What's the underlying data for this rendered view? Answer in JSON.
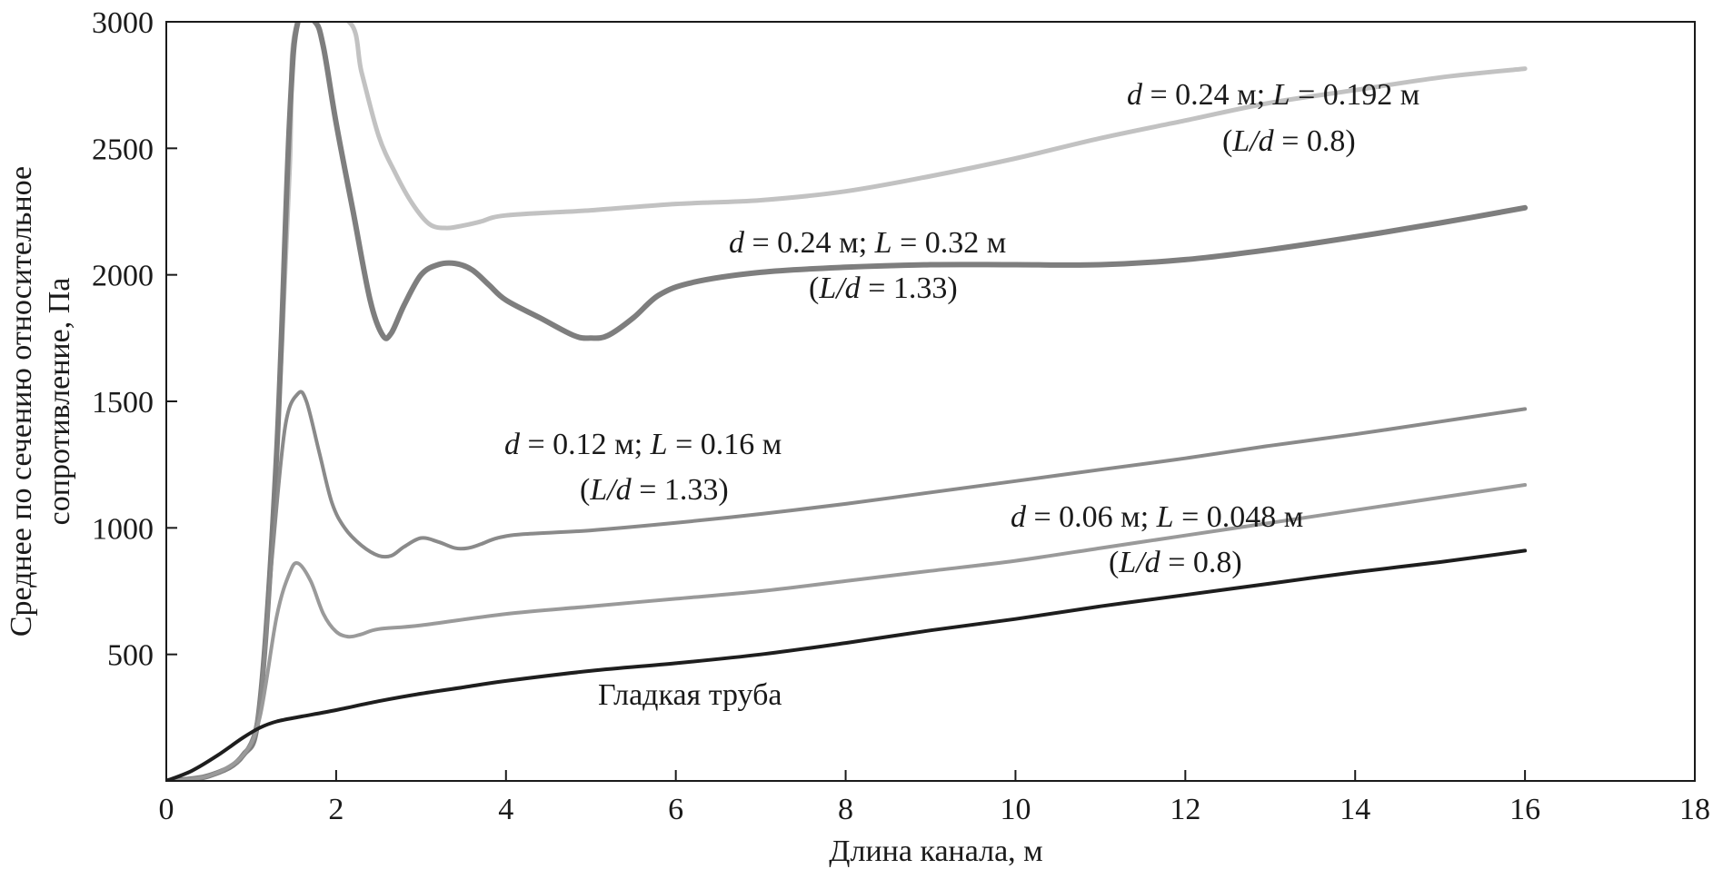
{
  "chart_data": {
    "type": "line",
    "xlabel": "Длина канала, м",
    "ylabel_line1": "Среднее по сечению относительное",
    "ylabel_line2": "сопротивление, Па",
    "xlim": [
      0,
      18
    ],
    "ylim": [
      0,
      3000
    ],
    "x_ticks": [
      0,
      2,
      4,
      6,
      8,
      10,
      12,
      14,
      16,
      18
    ],
    "y_ticks": [
      500,
      1000,
      1500,
      2000,
      2500,
      3000
    ],
    "grid": false,
    "legend": "none",
    "series": [
      {
        "color": "#c2c2c2",
        "width": 5,
        "points": [
          [
            0,
            0
          ],
          [
            0.5,
            20
          ],
          [
            0.9,
            100
          ],
          [
            1.1,
            300
          ],
          [
            1.3,
            1300
          ],
          [
            1.45,
            2400
          ],
          [
            1.55,
            3000
          ],
          [
            2.15,
            3000
          ],
          [
            2.3,
            2800
          ],
          [
            2.5,
            2550
          ],
          [
            2.7,
            2400
          ],
          [
            2.9,
            2280
          ],
          [
            3.1,
            2200
          ],
          [
            3.3,
            2185
          ],
          [
            3.5,
            2195
          ],
          [
            3.7,
            2210
          ],
          [
            4.0,
            2235
          ],
          [
            5.0,
            2255
          ],
          [
            6.0,
            2280
          ],
          [
            7.0,
            2295
          ],
          [
            8.0,
            2330
          ],
          [
            9.0,
            2390
          ],
          [
            10.0,
            2460
          ],
          [
            11.0,
            2540
          ],
          [
            12.0,
            2610
          ],
          [
            13.0,
            2680
          ],
          [
            14.0,
            2730
          ],
          [
            15.0,
            2780
          ],
          [
            16.0,
            2815
          ]
        ]
      },
      {
        "color": "#7e7e7e",
        "width": 6,
        "points": [
          [
            0,
            0
          ],
          [
            0.5,
            20
          ],
          [
            0.9,
            100
          ],
          [
            1.1,
            300
          ],
          [
            1.3,
            1300
          ],
          [
            1.45,
            2600
          ],
          [
            1.55,
            3000
          ],
          [
            1.75,
            3000
          ],
          [
            1.85,
            2900
          ],
          [
            2.0,
            2600
          ],
          [
            2.2,
            2250
          ],
          [
            2.4,
            1900
          ],
          [
            2.55,
            1760
          ],
          [
            2.65,
            1770
          ],
          [
            2.8,
            1880
          ],
          [
            3.0,
            2000
          ],
          [
            3.2,
            2040
          ],
          [
            3.4,
            2045
          ],
          [
            3.6,
            2020
          ],
          [
            3.8,
            1960
          ],
          [
            4.0,
            1900
          ],
          [
            4.4,
            1830
          ],
          [
            4.8,
            1760
          ],
          [
            5.0,
            1750
          ],
          [
            5.2,
            1760
          ],
          [
            5.5,
            1830
          ],
          [
            5.8,
            1920
          ],
          [
            6.2,
            1970
          ],
          [
            7.0,
            2010
          ],
          [
            8.0,
            2030
          ],
          [
            9.0,
            2040
          ],
          [
            10.0,
            2040
          ],
          [
            11.0,
            2040
          ],
          [
            12.0,
            2060
          ],
          [
            13.0,
            2100
          ],
          [
            14.0,
            2150
          ],
          [
            15.0,
            2205
          ],
          [
            16.0,
            2265
          ]
        ]
      },
      {
        "color": "#8a8a8a",
        "width": 4,
        "points": [
          [
            0,
            0
          ],
          [
            0.5,
            20
          ],
          [
            0.9,
            100
          ],
          [
            1.1,
            300
          ],
          [
            1.25,
            900
          ],
          [
            1.4,
            1400
          ],
          [
            1.55,
            1530
          ],
          [
            1.65,
            1500
          ],
          [
            1.8,
            1300
          ],
          [
            1.95,
            1100
          ],
          [
            2.1,
            1000
          ],
          [
            2.3,
            930
          ],
          [
            2.5,
            890
          ],
          [
            2.65,
            890
          ],
          [
            2.8,
            925
          ],
          [
            3.0,
            960
          ],
          [
            3.2,
            945
          ],
          [
            3.4,
            920
          ],
          [
            3.55,
            920
          ],
          [
            3.7,
            935
          ],
          [
            3.9,
            960
          ],
          [
            4.2,
            975
          ],
          [
            5.0,
            990
          ],
          [
            6.0,
            1020
          ],
          [
            7.0,
            1055
          ],
          [
            8.0,
            1095
          ],
          [
            9.0,
            1140
          ],
          [
            10.0,
            1185
          ],
          [
            11.0,
            1230
          ],
          [
            12.0,
            1275
          ],
          [
            13.0,
            1325
          ],
          [
            14.0,
            1370
          ],
          [
            15.0,
            1420
          ],
          [
            16.0,
            1470
          ]
        ]
      },
      {
        "color": "#9a9a9a",
        "width": 4,
        "points": [
          [
            0,
            0
          ],
          [
            0.5,
            20
          ],
          [
            0.9,
            100
          ],
          [
            1.1,
            250
          ],
          [
            1.3,
            650
          ],
          [
            1.45,
            820
          ],
          [
            1.55,
            860
          ],
          [
            1.7,
            790
          ],
          [
            1.85,
            660
          ],
          [
            2.0,
            590
          ],
          [
            2.15,
            570
          ],
          [
            2.3,
            580
          ],
          [
            2.5,
            600
          ],
          [
            3.0,
            615
          ],
          [
            4.0,
            660
          ],
          [
            5.0,
            690
          ],
          [
            6.0,
            720
          ],
          [
            7.0,
            750
          ],
          [
            8.0,
            790
          ],
          [
            9.0,
            830
          ],
          [
            10.0,
            870
          ],
          [
            11.0,
            920
          ],
          [
            12.0,
            970
          ],
          [
            13.0,
            1020
          ],
          [
            14.0,
            1070
          ],
          [
            15.0,
            1120
          ],
          [
            16.0,
            1170
          ]
        ]
      },
      {
        "color": "#1e1e1e",
        "width": 4,
        "points": [
          [
            0,
            0
          ],
          [
            0.3,
            40
          ],
          [
            0.6,
            100
          ],
          [
            0.9,
            170
          ],
          [
            1.1,
            210
          ],
          [
            1.3,
            235
          ],
          [
            1.6,
            255
          ],
          [
            2.0,
            280
          ],
          [
            2.5,
            315
          ],
          [
            3.0,
            345
          ],
          [
            3.5,
            370
          ],
          [
            4.0,
            395
          ],
          [
            5.0,
            435
          ],
          [
            6.0,
            465
          ],
          [
            7.0,
            500
          ],
          [
            8.0,
            545
          ],
          [
            9.0,
            595
          ],
          [
            10.0,
            640
          ],
          [
            11.0,
            690
          ],
          [
            12.0,
            735
          ],
          [
            13.0,
            780
          ],
          [
            14.0,
            825
          ],
          [
            15.0,
            865
          ],
          [
            16.0,
            910
          ]
        ]
      }
    ],
    "annotations": [
      {
        "line1": {
          "a": "d",
          "b": " = 0.24 м; ",
          "c": "L",
          "d": " = 0.192 м"
        },
        "line2": {
          "a": "(",
          "b": "L/d",
          "c": " = 0.8)"
        }
      },
      {
        "line1": {
          "a": "d",
          "b": " = 0.24 м; ",
          "c": "L",
          "d": " = 0.32 м"
        },
        "line2": {
          "a": "(",
          "b": "L/d",
          "c": " = 1.33)"
        }
      },
      {
        "line1": {
          "a": "d",
          "b": " = 0.12 м; ",
          "c": "L",
          "d": " = 0.16 м"
        },
        "line2": {
          "a": "(",
          "b": "L/d",
          "c": " = 1.33)"
        }
      },
      {
        "line1": {
          "a": "d",
          "b": " = 0.06 м; ",
          "c": "L",
          "d": " = 0.048 м"
        },
        "line2": {
          "a": "(",
          "b": "L/d",
          "c": " = 0.8)"
        }
      },
      {
        "text": "Гладкая труба"
      }
    ]
  }
}
